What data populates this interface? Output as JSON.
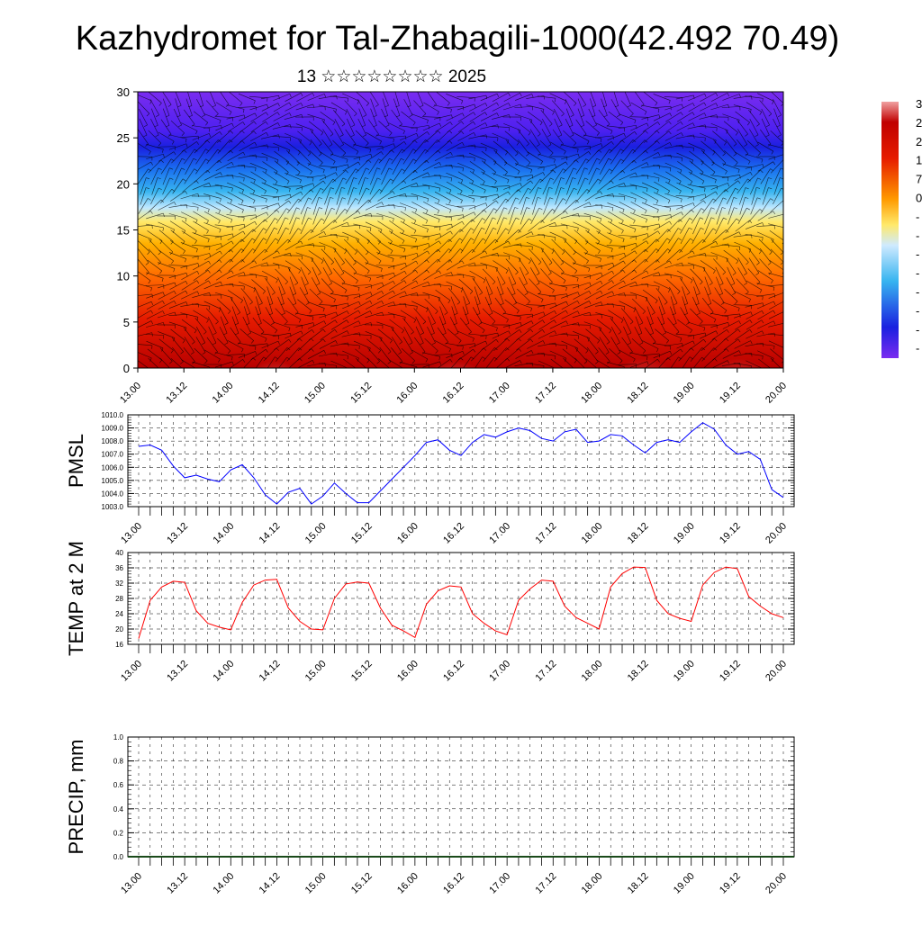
{
  "title": "Kazhydromet for Tal-Zhabagili-1000(42.492 70.49)",
  "subtitle": "13 ☆☆☆☆☆☆☆☆ 2025",
  "time_labels": [
    "13.00",
    "13.12",
    "14.00",
    "14.12",
    "15.00",
    "15.12",
    "16.00",
    "16.12",
    "17.00",
    "17.12",
    "18.00",
    "18.12",
    "19.00",
    "19.12",
    "20.00"
  ],
  "chart_data": [
    {
      "type": "heatmap",
      "title": "13 ☆☆☆☆☆☆☆☆ 2025",
      "ylabel": "",
      "ylim": [
        0,
        30
      ],
      "y_ticks": [
        0,
        5,
        10,
        15,
        20,
        25,
        30
      ],
      "colorbar_visible_labels": [
        "3",
        "2",
        "2",
        "1",
        "7",
        "0",
        "-",
        "-",
        "-",
        "-",
        "-",
        "-",
        "-",
        "-"
      ],
      "note_overlay": "wind barbs",
      "temperature_profile_by_height": [
        {
          "level": 0,
          "value": 30
        },
        {
          "level": 5,
          "value": 22
        },
        {
          "level": 10,
          "value": 12
        },
        {
          "level": 15,
          "value": 0
        },
        {
          "level": 17,
          "value": -10
        },
        {
          "level": 20,
          "value": -35
        },
        {
          "level": 25,
          "value": -60
        },
        {
          "level": 30,
          "value": -55
        }
      ]
    },
    {
      "type": "line",
      "ylabel": "PMSL",
      "ylim": [
        1003.0,
        1010.0
      ],
      "y_ticks": [
        "1003.0",
        "1004.0",
        "1005.0",
        "1006.0",
        "1007.0",
        "1008.0",
        "1009.0",
        "1010.0"
      ],
      "color": "#0000ff",
      "values": [
        1007.6,
        1007.7,
        1007.3,
        1006.1,
        1005.2,
        1005.4,
        1005.1,
        1004.9,
        1005.8,
        1006.2,
        1005.2,
        1003.9,
        1003.2,
        1004.1,
        1004.4,
        1003.2,
        1003.8,
        1004.8,
        1004.0,
        1003.3,
        1003.3,
        1004.2,
        1005.1,
        1006.0,
        1006.9,
        1007.9,
        1008.1,
        1007.3,
        1006.9,
        1007.9,
        1008.5,
        1008.3,
        1008.7,
        1009.0,
        1008.8,
        1008.2,
        1008.0,
        1008.7,
        1008.9,
        1007.9,
        1008.0,
        1008.5,
        1008.4,
        1007.7,
        1007.1,
        1007.9,
        1008.1,
        1007.9,
        1008.7,
        1009.4,
        1008.9,
        1007.7,
        1007.0,
        1007.2,
        1006.6,
        1004.3,
        1003.7
      ]
    },
    {
      "type": "line",
      "ylabel": "TEMP at 2 M",
      "ylim": [
        16,
        40
      ],
      "y_ticks": [
        "16",
        "20",
        "24",
        "28",
        "32",
        "36",
        "40"
      ],
      "color": "#ff0000",
      "values": [
        17.5,
        27.5,
        31.0,
        32.5,
        32.2,
        24.8,
        21.5,
        20.5,
        19.8,
        27.0,
        31.5,
        32.8,
        33.0,
        25.5,
        22.0,
        20.0,
        19.8,
        28.0,
        31.8,
        32.3,
        32.0,
        25.5,
        21.0,
        19.5,
        17.8,
        26.5,
        30.0,
        31.3,
        31.0,
        24.0,
        21.5,
        19.5,
        18.5,
        27.5,
        30.5,
        32.8,
        32.5,
        26.0,
        23.0,
        21.5,
        20.0,
        31.0,
        34.5,
        36.2,
        36.1,
        27.5,
        24.0,
        22.8,
        22.0,
        31.5,
        34.8,
        36.2,
        35.8,
        28.5,
        26.0,
        24.0,
        23.0
      ]
    },
    {
      "type": "bar",
      "ylabel": "PRECIP, mm",
      "ylim": [
        0.0,
        1.0
      ],
      "y_ticks": [
        "0.0",
        "0.2",
        "0.4",
        "0.6",
        "0.8",
        "1.0"
      ],
      "values": []
    }
  ]
}
